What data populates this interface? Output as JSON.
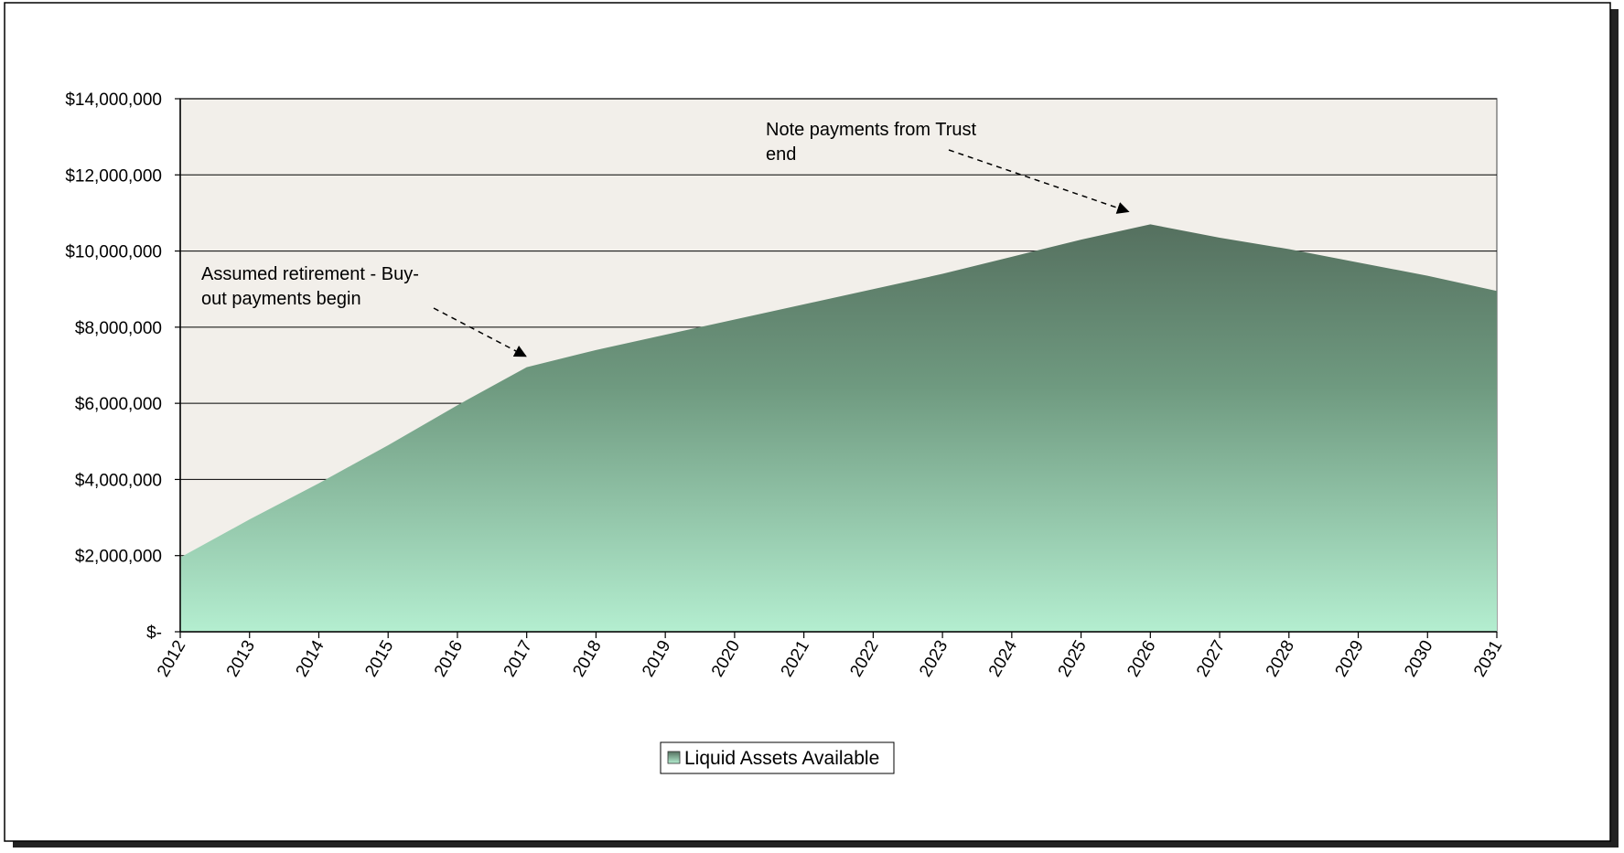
{
  "chart_data": {
    "type": "area",
    "title": "",
    "xlabel": "",
    "ylabel": "",
    "x": [
      "2012",
      "2013",
      "2014",
      "2015",
      "2016",
      "2017",
      "2018",
      "2019",
      "2020",
      "2021",
      "2022",
      "2023",
      "2024",
      "2025",
      "2026",
      "2027",
      "2028",
      "2029",
      "2030",
      "2031"
    ],
    "series": [
      {
        "name": "Liquid Assets Available",
        "values": [
          1950000,
          2950000,
          3900000,
          4900000,
          5950000,
          6950000,
          7400000,
          7800000,
          8200000,
          8600000,
          9000000,
          9400000,
          9850000,
          10300000,
          10700000,
          10350000,
          10050000,
          9700000,
          9350000,
          8950000
        ]
      }
    ],
    "ylim": [
      0,
      14000000
    ],
    "y_ticks": [
      0,
      2000000,
      4000000,
      6000000,
      8000000,
      10000000,
      12000000,
      14000000
    ],
    "y_tick_labels": [
      "$-",
      "$2,000,000",
      "$4,000,000",
      "$6,000,000",
      "$8,000,000",
      "$10,000,000",
      "$12,000,000",
      "$14,000,000"
    ],
    "grid": true,
    "legend_position": "bottom",
    "annotations": [
      {
        "lines": [
          "Assumed retirement - Buy-",
          "out payments begin"
        ],
        "target_x": "2017"
      },
      {
        "lines": [
          "Note payments from Trust",
          "end"
        ],
        "target_x": "2026"
      }
    ],
    "colors": {
      "plot_background": "#f2efea",
      "area_top": "#55705f",
      "area_bottom": "#b4eed0",
      "gridline": "#000000"
    }
  }
}
